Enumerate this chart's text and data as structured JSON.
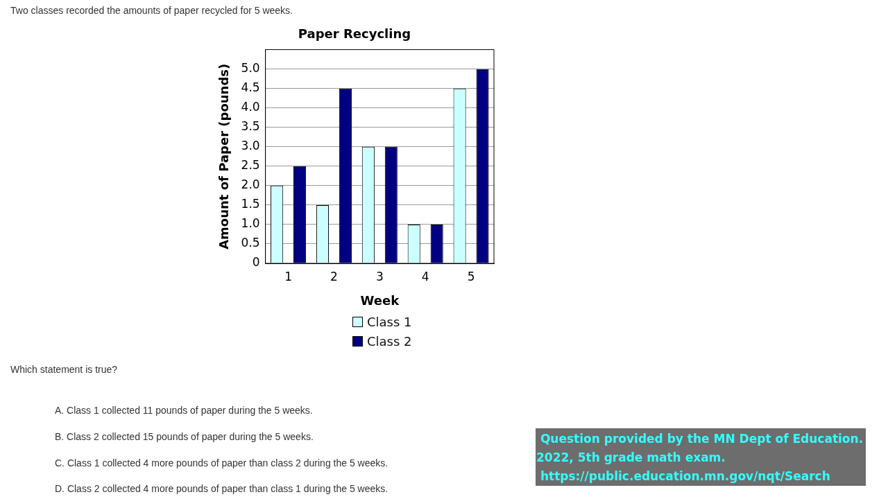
{
  "chart_data": {
    "type": "bar",
    "title": "Paper Recycling",
    "xlabel": "Week",
    "ylabel": "Amount of Paper (pounds)",
    "categories": [
      "1",
      "2",
      "3",
      "4",
      "5"
    ],
    "series": [
      {
        "name": "Class 1",
        "color": "#ccffff",
        "values": [
          2,
          1.5,
          3,
          1,
          4.5
        ]
      },
      {
        "name": "Class 2",
        "color": "#000080",
        "values": [
          2.5,
          4.5,
          3,
          1,
          5
        ]
      }
    ],
    "ylim": [
      0,
      5.5
    ],
    "yticks": [
      0,
      0.5,
      {
        "value": 1,
        "label": "1.0"
      },
      1.5,
      {
        "value": 2,
        "label": "2.0"
      },
      2.5,
      {
        "value": 3,
        "label": "3.0"
      },
      3.5,
      {
        "value": 4,
        "label": "4.0"
      },
      4.5,
      {
        "value": 5,
        "label": "5.0"
      }
    ],
    "grid": "y",
    "legend": "bottom",
    "annotations": [
      "Two classes recorded the amounts of paper recycled for 5 weeks.",
      "Which statement is true?",
      "A. Class 1 collected 11 pounds of paper during the 5 weeks.",
      "B. Class 2 collected 15 pounds of paper during the 5 weeks.",
      "C. Class 1 collected 4 more pounds of paper than class 2 during the 5 weeks.",
      "D. Class 2 collected 4 more pounds of paper than class 1 during the 5 weeks.",
      " Question provided by the MN Dept of Education.\n2022, 5th grade math exam.\n https://public.education.mn.gov/nqt/Search"
    ]
  }
}
